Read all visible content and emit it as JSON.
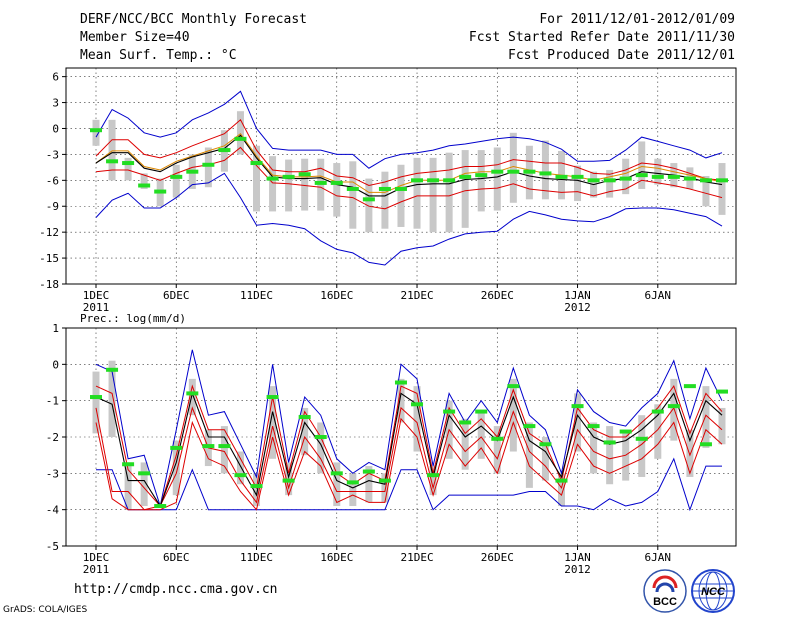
{
  "header": {
    "title": "DERF/NCC/BCC Monthly Forecast",
    "member_size": "Member Size=40",
    "variable": "Mean Surf. Temp.: °C",
    "period": "For 2011/12/01-2012/01/09",
    "started": "Fcst Started Refer Date 2011/11/30",
    "produced": "Fcst Produced Date 2011/12/01"
  },
  "footer": {
    "url": "http://cmdp.ncc.cma.gov.cn",
    "grads": "GrADS: COLA/IGES",
    "logo_bcc": "BCC",
    "logo_ncc": "NCC"
  },
  "colors": {
    "envelope": "#0000cc",
    "spread": "#dd0000",
    "mean": "#000000",
    "obs": "#22dd22",
    "box": "#c8c8c8",
    "trend": "#dd8800"
  },
  "chart_data": [
    {
      "type": "line",
      "title": "Mean Surf. Temp.: °C",
      "ylim": [
        -18,
        7
      ],
      "yticks": [
        -18,
        -15,
        -12,
        -9,
        -6,
        -3,
        0,
        3,
        6
      ],
      "xtick_labels": [
        {
          "day": 1,
          "label": "1DEC",
          "sub": "2011"
        },
        {
          "day": 6,
          "label": "6DEC",
          "sub": ""
        },
        {
          "day": 11,
          "label": "11DEC",
          "sub": ""
        },
        {
          "day": 16,
          "label": "16DEC",
          "sub": ""
        },
        {
          "day": 21,
          "label": "21DEC",
          "sub": ""
        },
        {
          "day": 26,
          "label": "26DEC",
          "sub": ""
        },
        {
          "day": 31,
          "label": "1JAN",
          "sub": "2012"
        },
        {
          "day": 36,
          "label": "6JAN",
          "sub": ""
        }
      ],
      "days": [
        1,
        2,
        3,
        4,
        5,
        6,
        7,
        8,
        9,
        10,
        11,
        12,
        13,
        14,
        15,
        16,
        17,
        18,
        19,
        20,
        21,
        22,
        23,
        24,
        25,
        26,
        27,
        28,
        29,
        30,
        31,
        32,
        33,
        34,
        35,
        36,
        37,
        38,
        39,
        40
      ],
      "series": [
        {
          "name": "max",
          "values": [
            -10.3,
            -8.3,
            -7.5,
            -9.2,
            -9.2,
            -8.0,
            -6.5,
            -6.3,
            -5.2,
            -8.0,
            -11.2,
            -11.0,
            -11.2,
            -11.6,
            -13.0,
            -14.0,
            -14.4,
            -15.5,
            -15.8,
            -14.2,
            -13.8,
            -13.6,
            -12.8,
            -12.2,
            -12.0,
            -11.9,
            -10.5,
            -9.6,
            -10.0,
            -10.5,
            -10.7,
            -10.8,
            -10.2,
            -9.3,
            -9.2,
            -9.2,
            -9.4,
            -9.8,
            -10.2,
            -11.3
          ]
        },
        {
          "name": "upper",
          "values": [
            -1.0,
            2.2,
            1.2,
            -0.5,
            -1.0,
            -0.5,
            1.0,
            1.8,
            2.8,
            4.3,
            0.0,
            -2.3,
            -2.5,
            -2.5,
            -2.5,
            -3.0,
            -3.0,
            -4.6,
            -3.5,
            -3.0,
            -2.8,
            -2.5,
            -2.0,
            -1.8,
            -1.5,
            -1.2,
            -1.0,
            -1.2,
            -1.6,
            -2.4,
            -3.8,
            -3.8,
            -3.7,
            -2.5,
            -1.0,
            -1.5,
            -2.0,
            -2.5,
            -3.4,
            -2.8
          ]
        },
        {
          "name": "spread_hi",
          "values": [
            -3.2,
            -1.3,
            -1.3,
            -3.0,
            -3.4,
            -2.8,
            -2.0,
            -1.3,
            -0.6,
            1.0,
            -2.5,
            -4.8,
            -5.0,
            -5.0,
            -4.6,
            -5.5,
            -5.7,
            -6.6,
            -6.2,
            -5.6,
            -5.2,
            -5.0,
            -4.8,
            -4.4,
            -4.4,
            -4.2,
            -3.6,
            -3.8,
            -4.0,
            -4.0,
            -4.5,
            -5.2,
            -5.3,
            -4.8,
            -4.0,
            -4.2,
            -4.6,
            -5.2,
            -5.8,
            -6.0
          ]
        },
        {
          "name": "mean",
          "values": [
            -4.0,
            -2.8,
            -2.8,
            -4.6,
            -5.0,
            -4.0,
            -3.3,
            -2.8,
            -2.3,
            -0.8,
            -3.4,
            -5.6,
            -5.8,
            -5.8,
            -5.7,
            -6.5,
            -6.8,
            -7.8,
            -7.8,
            -6.9,
            -6.5,
            -6.4,
            -6.4,
            -5.9,
            -5.8,
            -5.6,
            -5.0,
            -5.5,
            -5.8,
            -5.9,
            -6.0,
            -6.5,
            -6.0,
            -5.8,
            -5.0,
            -5.2,
            -5.4,
            -5.7,
            -6.2,
            -6.5
          ]
        },
        {
          "name": "spread_lo",
          "values": [
            -5.0,
            -4.8,
            -4.8,
            -5.4,
            -6.0,
            -5.2,
            -4.5,
            -4.2,
            -3.7,
            -2.2,
            -4.3,
            -6.3,
            -6.4,
            -6.6,
            -6.8,
            -7.8,
            -8.0,
            -9.0,
            -9.3,
            -8.5,
            -7.8,
            -7.8,
            -7.8,
            -7.2,
            -7.0,
            -6.9,
            -6.4,
            -7.0,
            -7.2,
            -7.4,
            -7.3,
            -7.8,
            -7.3,
            -7.0,
            -6.0,
            -6.3,
            -6.6,
            -7.0,
            -7.5,
            -8.0
          ]
        },
        {
          "name": "trend",
          "values": [
            -4.0,
            -2.6,
            -2.6,
            -4.4,
            -4.8,
            -3.8,
            -3.2,
            -2.6,
            -2.0,
            -0.6,
            -3.2,
            -5.4,
            -5.6,
            -5.6,
            -5.5,
            -6.2,
            -6.2,
            -7.4,
            -7.4,
            -6.6,
            -6.0,
            -6.0,
            -6.0,
            -5.2,
            -5.0,
            -5.0,
            -4.4,
            -4.8,
            -5.2,
            -5.4,
            -5.6,
            -6.0,
            -5.6,
            -5.2,
            -4.4,
            -4.6,
            -5.0,
            -5.4,
            -5.8,
            -6.2
          ]
        },
        {
          "name": "box_hi",
          "values": [
            1.0,
            1.0,
            -3.4,
            -5.2,
            -5.8,
            -4.2,
            -3.0,
            -2.2,
            -0.2,
            2.0,
            -2.0,
            -3.2,
            -3.6,
            -3.5,
            -3.5,
            -4.0,
            -3.8,
            -5.8,
            -5.0,
            -4.2,
            -3.4,
            -3.4,
            -2.8,
            -2.5,
            -2.5,
            -2.2,
            -0.5,
            -2.0,
            -1.4,
            -2.6,
            -4.3,
            -5.0,
            -4.8,
            -3.5,
            -1.5,
            -3.5,
            -4.0,
            -4.5,
            -5.5,
            -4.0
          ]
        },
        {
          "name": "box_lo",
          "values": [
            -2.0,
            -6.0,
            -6.0,
            -7.0,
            -9.0,
            -8.0,
            -7.0,
            -6.8,
            -5.0,
            -3.0,
            -9.6,
            -9.6,
            -9.6,
            -9.5,
            -9.5,
            -10.2,
            -11.6,
            -12.0,
            -11.6,
            -11.4,
            -11.6,
            -12.0,
            -12.0,
            -11.5,
            -9.6,
            -9.5,
            -8.6,
            -8.2,
            -8.2,
            -8.2,
            -8.4,
            -8.0,
            -8.0,
            -7.6,
            -7.0,
            -6.5,
            -6.8,
            -7.0,
            -9.0,
            -10.0
          ]
        },
        {
          "name": "obs",
          "values": [
            -0.2,
            -3.8,
            -4.0,
            -6.6,
            -7.3,
            -5.6,
            -5.0,
            -4.2,
            -2.5,
            -1.2,
            -4.0,
            -5.8,
            -5.6,
            -5.3,
            -6.3,
            -6.3,
            -7.0,
            -8.2,
            -7.0,
            -7.0,
            -6.0,
            -6.0,
            -6.0,
            -5.6,
            -5.4,
            -5.0,
            -5.0,
            -5.0,
            -5.2,
            -5.6,
            -5.6,
            -6.0,
            -6.0,
            -5.8,
            -5.4,
            -5.6,
            -5.6,
            -5.8,
            -6.0,
            -6.0
          ]
        }
      ]
    },
    {
      "type": "line",
      "title": "Prec.: log(mm/d)",
      "ylim": [
        -5,
        1
      ],
      "yticks": [
        -5,
        -4,
        -3,
        -2,
        -1,
        0,
        1
      ],
      "xtick_labels": [
        {
          "day": 1,
          "label": "1DEC",
          "sub": "2011"
        },
        {
          "day": 6,
          "label": "6DEC",
          "sub": ""
        },
        {
          "day": 11,
          "label": "11DEC",
          "sub": ""
        },
        {
          "day": 16,
          "label": "16DEC",
          "sub": ""
        },
        {
          "day": 21,
          "label": "21DEC",
          "sub": ""
        },
        {
          "day": 26,
          "label": "26DEC",
          "sub": ""
        },
        {
          "day": 31,
          "label": "1JAN",
          "sub": "2012"
        },
        {
          "day": 36,
          "label": "6JAN",
          "sub": ""
        }
      ],
      "days": [
        1,
        2,
        3,
        4,
        5,
        6,
        7,
        8,
        9,
        10,
        11,
        12,
        13,
        14,
        15,
        16,
        17,
        18,
        19,
        20,
        21,
        22,
        23,
        24,
        25,
        26,
        27,
        28,
        29,
        30,
        31,
        32,
        33,
        34,
        35,
        36,
        37,
        38,
        39,
        40
      ],
      "series": [
        {
          "name": "max",
          "values": [
            0.0,
            -0.2,
            -2.6,
            -2.5,
            -3.9,
            -1.8,
            0.4,
            -1.4,
            -1.3,
            -2.2,
            -3.1,
            0.0,
            -2.7,
            -0.9,
            -1.4,
            -2.6,
            -3.0,
            -2.7,
            -2.9,
            0.0,
            -0.4,
            -2.8,
            -0.8,
            -1.6,
            -1.0,
            -1.6,
            -0.1,
            -1.4,
            -1.8,
            -3.0,
            -0.7,
            -1.3,
            -1.6,
            -1.7,
            -1.2,
            -0.8,
            0.1,
            -1.5,
            -0.1,
            -1.0
          ]
        },
        {
          "name": "spread_hi",
          "values": [
            -0.6,
            -0.8,
            -2.9,
            -3.4,
            -3.9,
            -2.5,
            -0.6,
            -1.8,
            -1.8,
            -2.6,
            -3.4,
            -0.9,
            -3.0,
            -1.3,
            -2.0,
            -3.0,
            -3.3,
            -3.0,
            -3.2,
            -0.6,
            -0.8,
            -3.0,
            -1.2,
            -1.9,
            -1.5,
            -2.0,
            -0.7,
            -1.9,
            -2.2,
            -3.2,
            -1.2,
            -1.8,
            -2.0,
            -2.0,
            -1.6,
            -1.2,
            -0.6,
            -1.9,
            -0.8,
            -1.3
          ]
        },
        {
          "name": "mean",
          "values": [
            -0.9,
            -1.1,
            -3.2,
            -3.2,
            -3.9,
            -2.7,
            -0.8,
            -2.0,
            -2.0,
            -2.8,
            -3.6,
            -1.3,
            -3.1,
            -1.6,
            -2.2,
            -3.2,
            -3.4,
            -3.2,
            -3.3,
            -0.8,
            -1.1,
            -3.1,
            -1.4,
            -2.0,
            -1.7,
            -2.1,
            -0.9,
            -2.1,
            -2.4,
            -3.1,
            -1.4,
            -2.0,
            -2.2,
            -2.1,
            -1.8,
            -1.4,
            -0.8,
            -2.1,
            -1.0,
            -1.4
          ]
        },
        {
          "name": "spread_lo",
          "values": [
            -1.2,
            -3.5,
            -3.5,
            -4.0,
            -3.9,
            -3.0,
            -1.2,
            -2.3,
            -2.4,
            -3.2,
            -3.8,
            -1.7,
            -3.4,
            -2.0,
            -2.6,
            -3.5,
            -3.5,
            -3.5,
            -3.5,
            -1.2,
            -1.6,
            -3.4,
            -1.8,
            -2.4,
            -2.0,
            -2.6,
            -1.3,
            -2.4,
            -2.8,
            -3.4,
            -1.8,
            -2.4,
            -2.6,
            -2.5,
            -2.2,
            -1.8,
            -1.2,
            -2.5,
            -1.4,
            -1.8
          ]
        },
        {
          "name": "lower",
          "values": [
            -1.6,
            -3.7,
            -4.0,
            -4.0,
            -4.0,
            -3.8,
            -1.6,
            -2.6,
            -2.8,
            -3.5,
            -4.0,
            -2.0,
            -3.6,
            -2.4,
            -2.8,
            -3.8,
            -3.6,
            -3.8,
            -3.8,
            -1.5,
            -2.0,
            -3.6,
            -2.2,
            -2.8,
            -2.3,
            -3.0,
            -1.6,
            -2.8,
            -3.2,
            -3.6,
            -2.2,
            -2.8,
            -3.0,
            -2.8,
            -2.6,
            -2.2,
            -1.6,
            -3.0,
            -1.8,
            -2.2
          ]
        },
        {
          "name": "min",
          "values": [
            -2.9,
            -2.9,
            -4.0,
            -4.0,
            -4.0,
            -4.0,
            -2.9,
            -4.0,
            -4.0,
            -4.0,
            -4.0,
            -4.0,
            -4.0,
            -4.0,
            -4.0,
            -4.0,
            -4.0,
            -4.0,
            -4.0,
            -2.9,
            -2.9,
            -4.0,
            -3.6,
            -3.6,
            -3.6,
            -3.6,
            -3.6,
            -3.5,
            -3.5,
            -3.9,
            -3.9,
            -4.0,
            -3.7,
            -3.9,
            -3.8,
            -3.5,
            -2.6,
            -4.0,
            -2.8,
            -2.8
          ]
        },
        {
          "name": "box_hi",
          "values": [
            -0.2,
            0.1,
            -2.7,
            -2.7,
            -3.9,
            -2.1,
            -0.4,
            -1.8,
            -1.7,
            -2.4,
            -3.0,
            -0.6,
            -2.7,
            -1.2,
            -1.6,
            -2.7,
            -3.0,
            -2.8,
            -3.0,
            -0.4,
            -0.6,
            -2.8,
            -1.0,
            -1.5,
            -1.3,
            -1.7,
            -0.4,
            -1.6,
            -2.0,
            -3.0,
            -0.8,
            -1.6,
            -1.7,
            -1.8,
            -1.4,
            -1.1,
            -0.4,
            -1.8,
            -0.6,
            -1.2
          ]
        },
        {
          "name": "box_lo",
          "values": [
            -1.9,
            -2.0,
            -4.0,
            -3.9,
            -3.9,
            -3.6,
            -1.4,
            -2.8,
            -3.0,
            -3.3,
            -3.9,
            -2.6,
            -3.6,
            -2.5,
            -3.0,
            -3.9,
            -3.9,
            -3.8,
            -3.8,
            -1.6,
            -2.4,
            -3.6,
            -2.6,
            -2.9,
            -2.6,
            -3.0,
            -2.4,
            -3.4,
            -3.2,
            -3.9,
            -2.4,
            -3.0,
            -3.3,
            -3.2,
            -3.1,
            -2.6,
            -2.1,
            -3.1,
            -2.3,
            -2.2
          ]
        },
        {
          "name": "obs",
          "values": [
            -0.9,
            -0.15,
            -2.75,
            -3.0,
            -3.9,
            -2.3,
            -0.8,
            -2.25,
            -2.25,
            -3.05,
            -3.35,
            -0.9,
            -3.2,
            -1.45,
            -2.0,
            -3.0,
            -3.25,
            -2.95,
            -3.2,
            -0.5,
            -1.1,
            -3.05,
            -1.3,
            -1.6,
            -1.3,
            -2.05,
            -0.6,
            -1.7,
            -2.2,
            -3.2,
            -1.15,
            -1.7,
            -2.15,
            -1.85,
            -2.05,
            -1.3,
            -1.15,
            -0.6,
            -2.2,
            -0.75
          ]
        }
      ]
    }
  ]
}
